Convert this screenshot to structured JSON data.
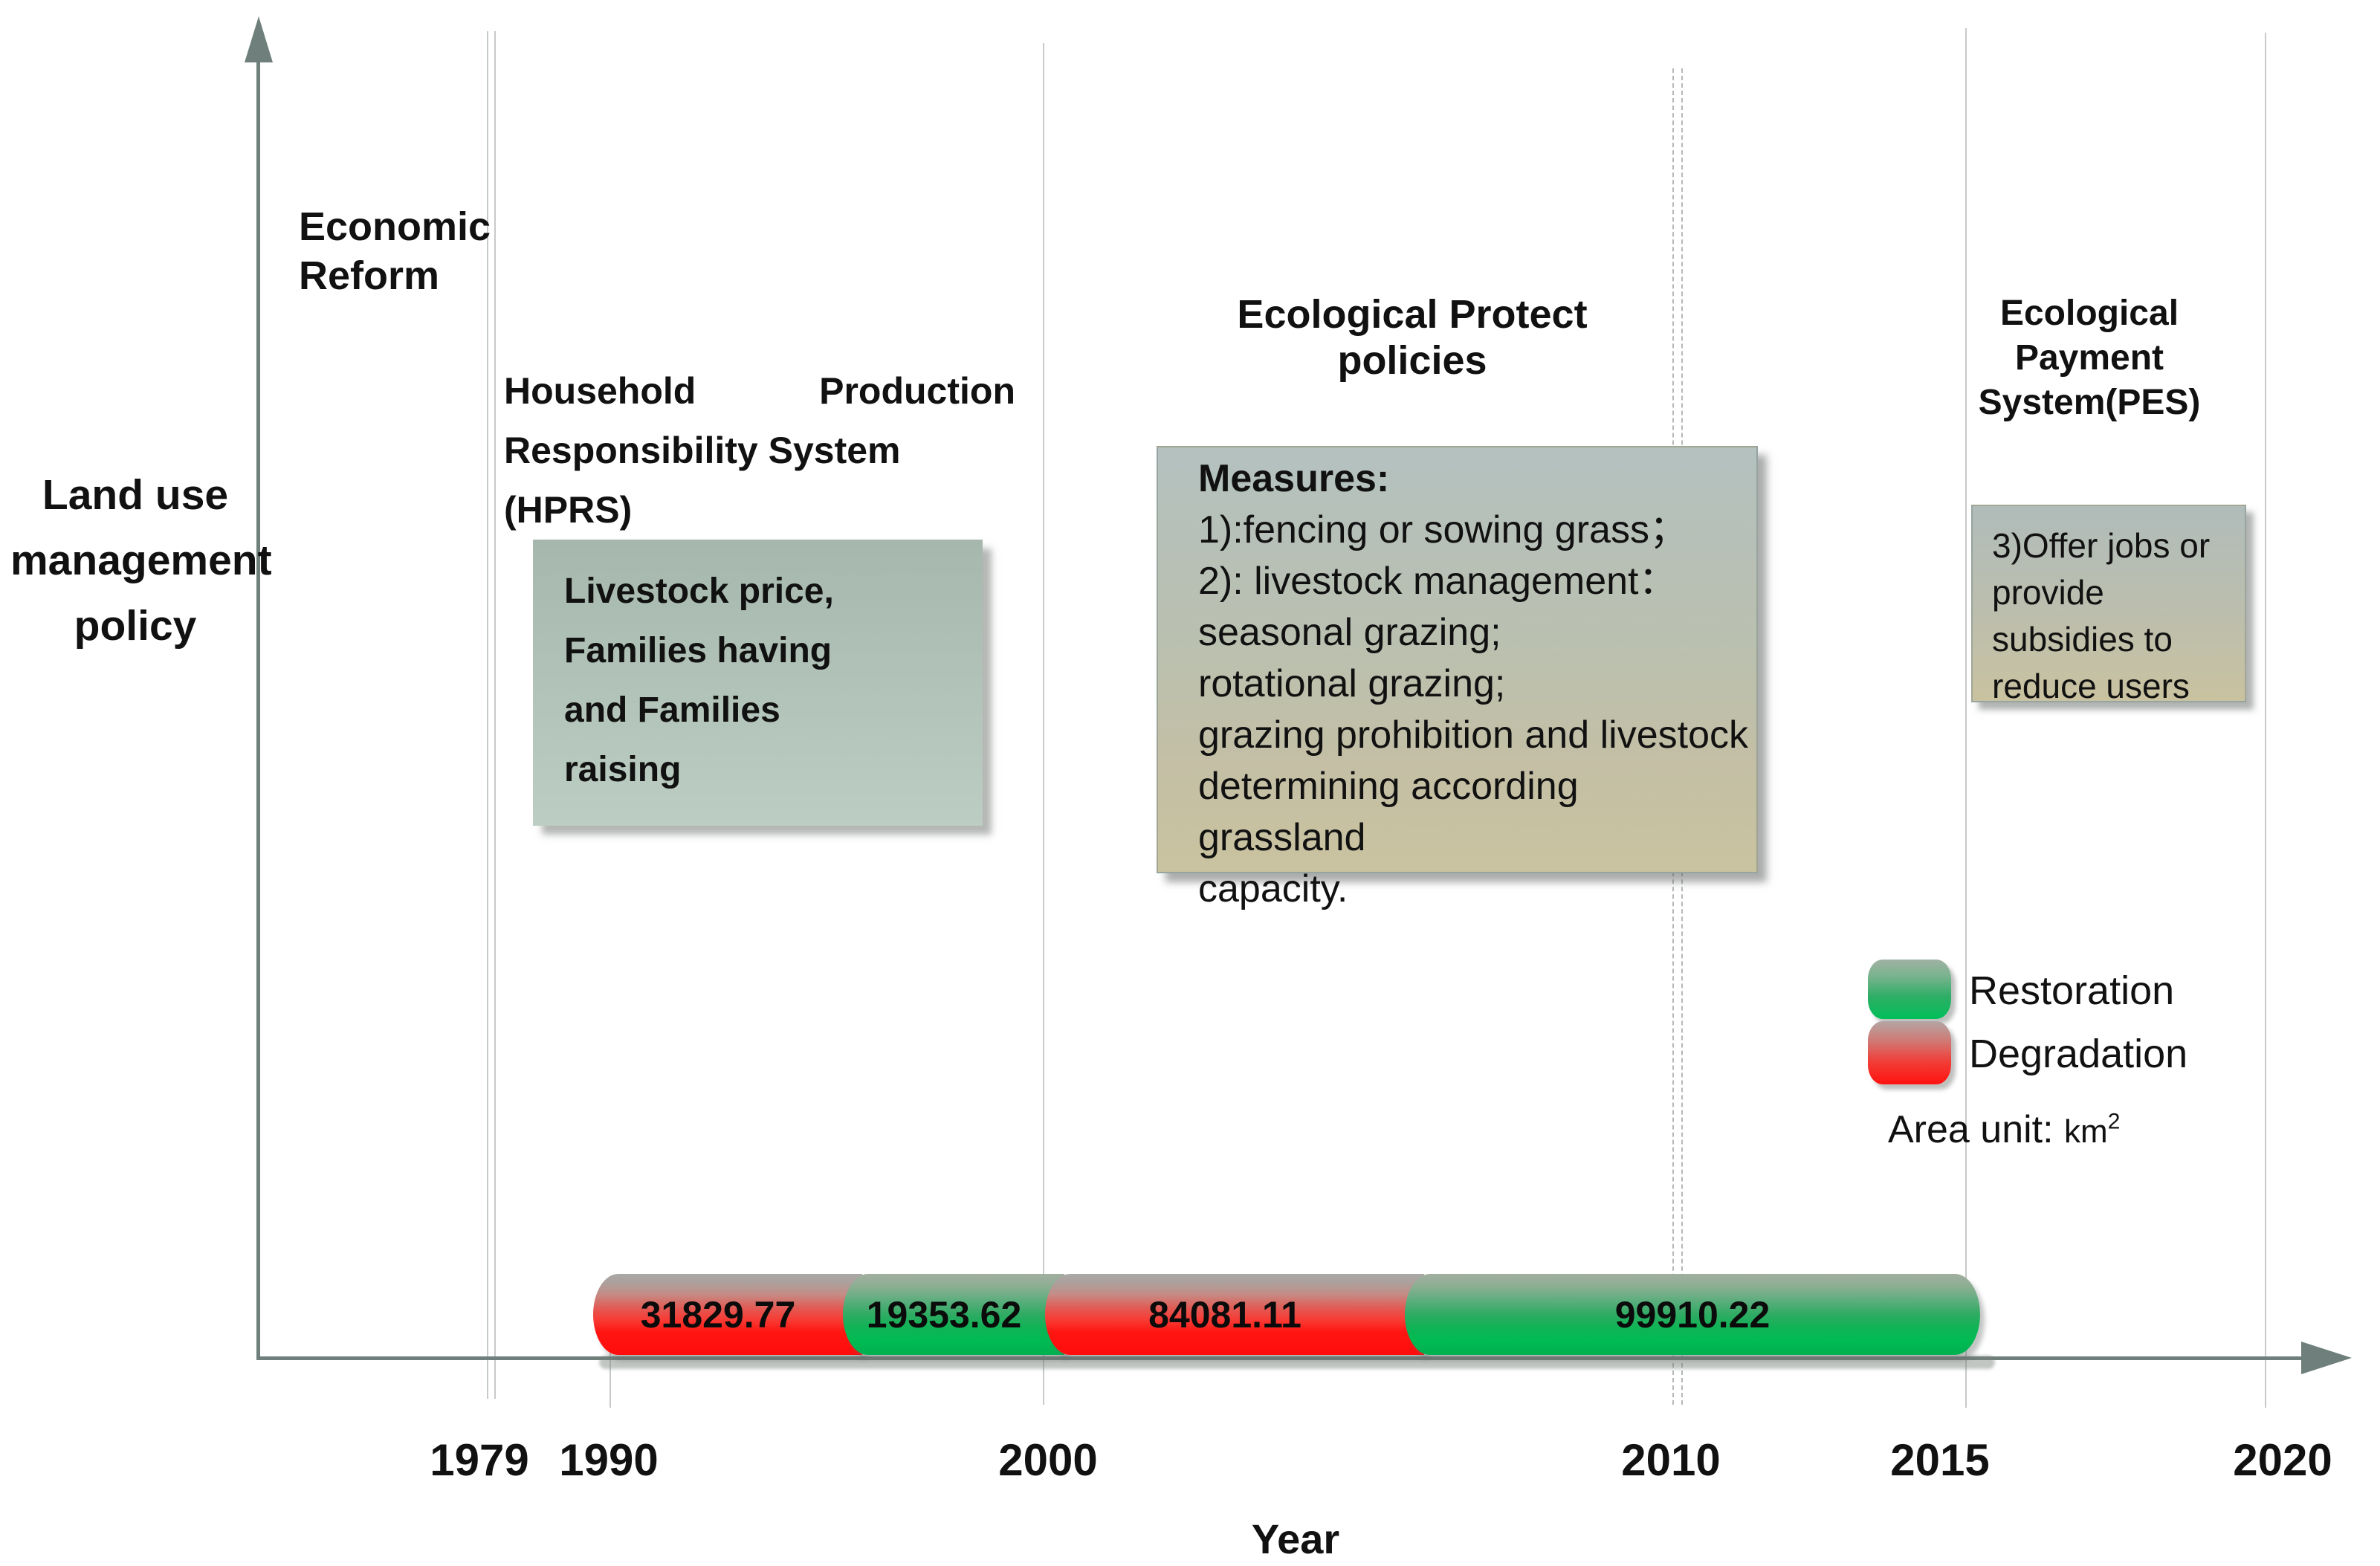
{
  "axes": {
    "y_label_lines": [
      "Land use",
      "management",
      "policy"
    ],
    "x_label": "Year",
    "tick_labels": [
      "1979",
      "1990",
      "2000",
      "2010",
      "2015",
      "2020"
    ]
  },
  "headings": {
    "economic_reform_lines": [
      "Economic",
      "Reform"
    ],
    "hprs_line1": "Household Production",
    "hprs_line2": "Responsibility System (HPRS)",
    "ecological_protect": "Ecological Protect policies",
    "pes_lines": [
      "Ecological",
      "Payment",
      "System(PES)"
    ]
  },
  "boxes": {
    "hprs_measures_lines": [
      "Livestock price,",
      "Families having",
      "and Families",
      "raising"
    ],
    "protect_measures_title": "Measures:",
    "protect_measures_lines": [
      "1):fencing or sowing grass；",
      "2): livestock management：",
      "seasonal grazing;",
      "rotational grazing;",
      "grazing prohibition and livestock",
      "determining according grassland",
      "capacity."
    ],
    "pes_measures_lines": [
      "3)Offer jobs or",
      "provide",
      "subsidies to",
      "reduce users"
    ]
  },
  "legend": {
    "items": [
      {
        "label": "Restoration",
        "color": "#00b050"
      },
      {
        "label": "Degradation",
        "color": "#ff0d0d"
      }
    ],
    "area_unit_prefix": "Area unit: ",
    "area_unit_value": "km",
    "area_unit_sup": "2"
  },
  "colors": {
    "axis": "#6f7f7b",
    "guide_line": "#c6cac8",
    "restoration_green": "#00b050",
    "degradation_red": "#ff0d0d",
    "box_sage": "#aebdb3",
    "box_khaki": "#c9c3a0"
  },
  "chart_data": {
    "type": "bar",
    "orientation": "horizontal-timeline",
    "xlabel": "Year",
    "x_ticks": [
      1979,
      1990,
      2000,
      2010,
      2015,
      2020
    ],
    "unit": "km2",
    "bars_start_at_tick": "1990",
    "bars_end_at_tick": "2015",
    "segments": [
      {
        "label": "31829.77",
        "value": 31829.77,
        "status": "Degradation",
        "color": "#ff0d0d"
      },
      {
        "label": "19353.62",
        "value": 19353.62,
        "status": "Restoration",
        "color": "#00b050"
      },
      {
        "label": "84081.11",
        "value": 84081.11,
        "status": "Degradation",
        "color": "#ff0d0d"
      },
      {
        "label": "99910.22",
        "value": 99910.22,
        "status": "Restoration",
        "color": "#00b050"
      }
    ]
  }
}
